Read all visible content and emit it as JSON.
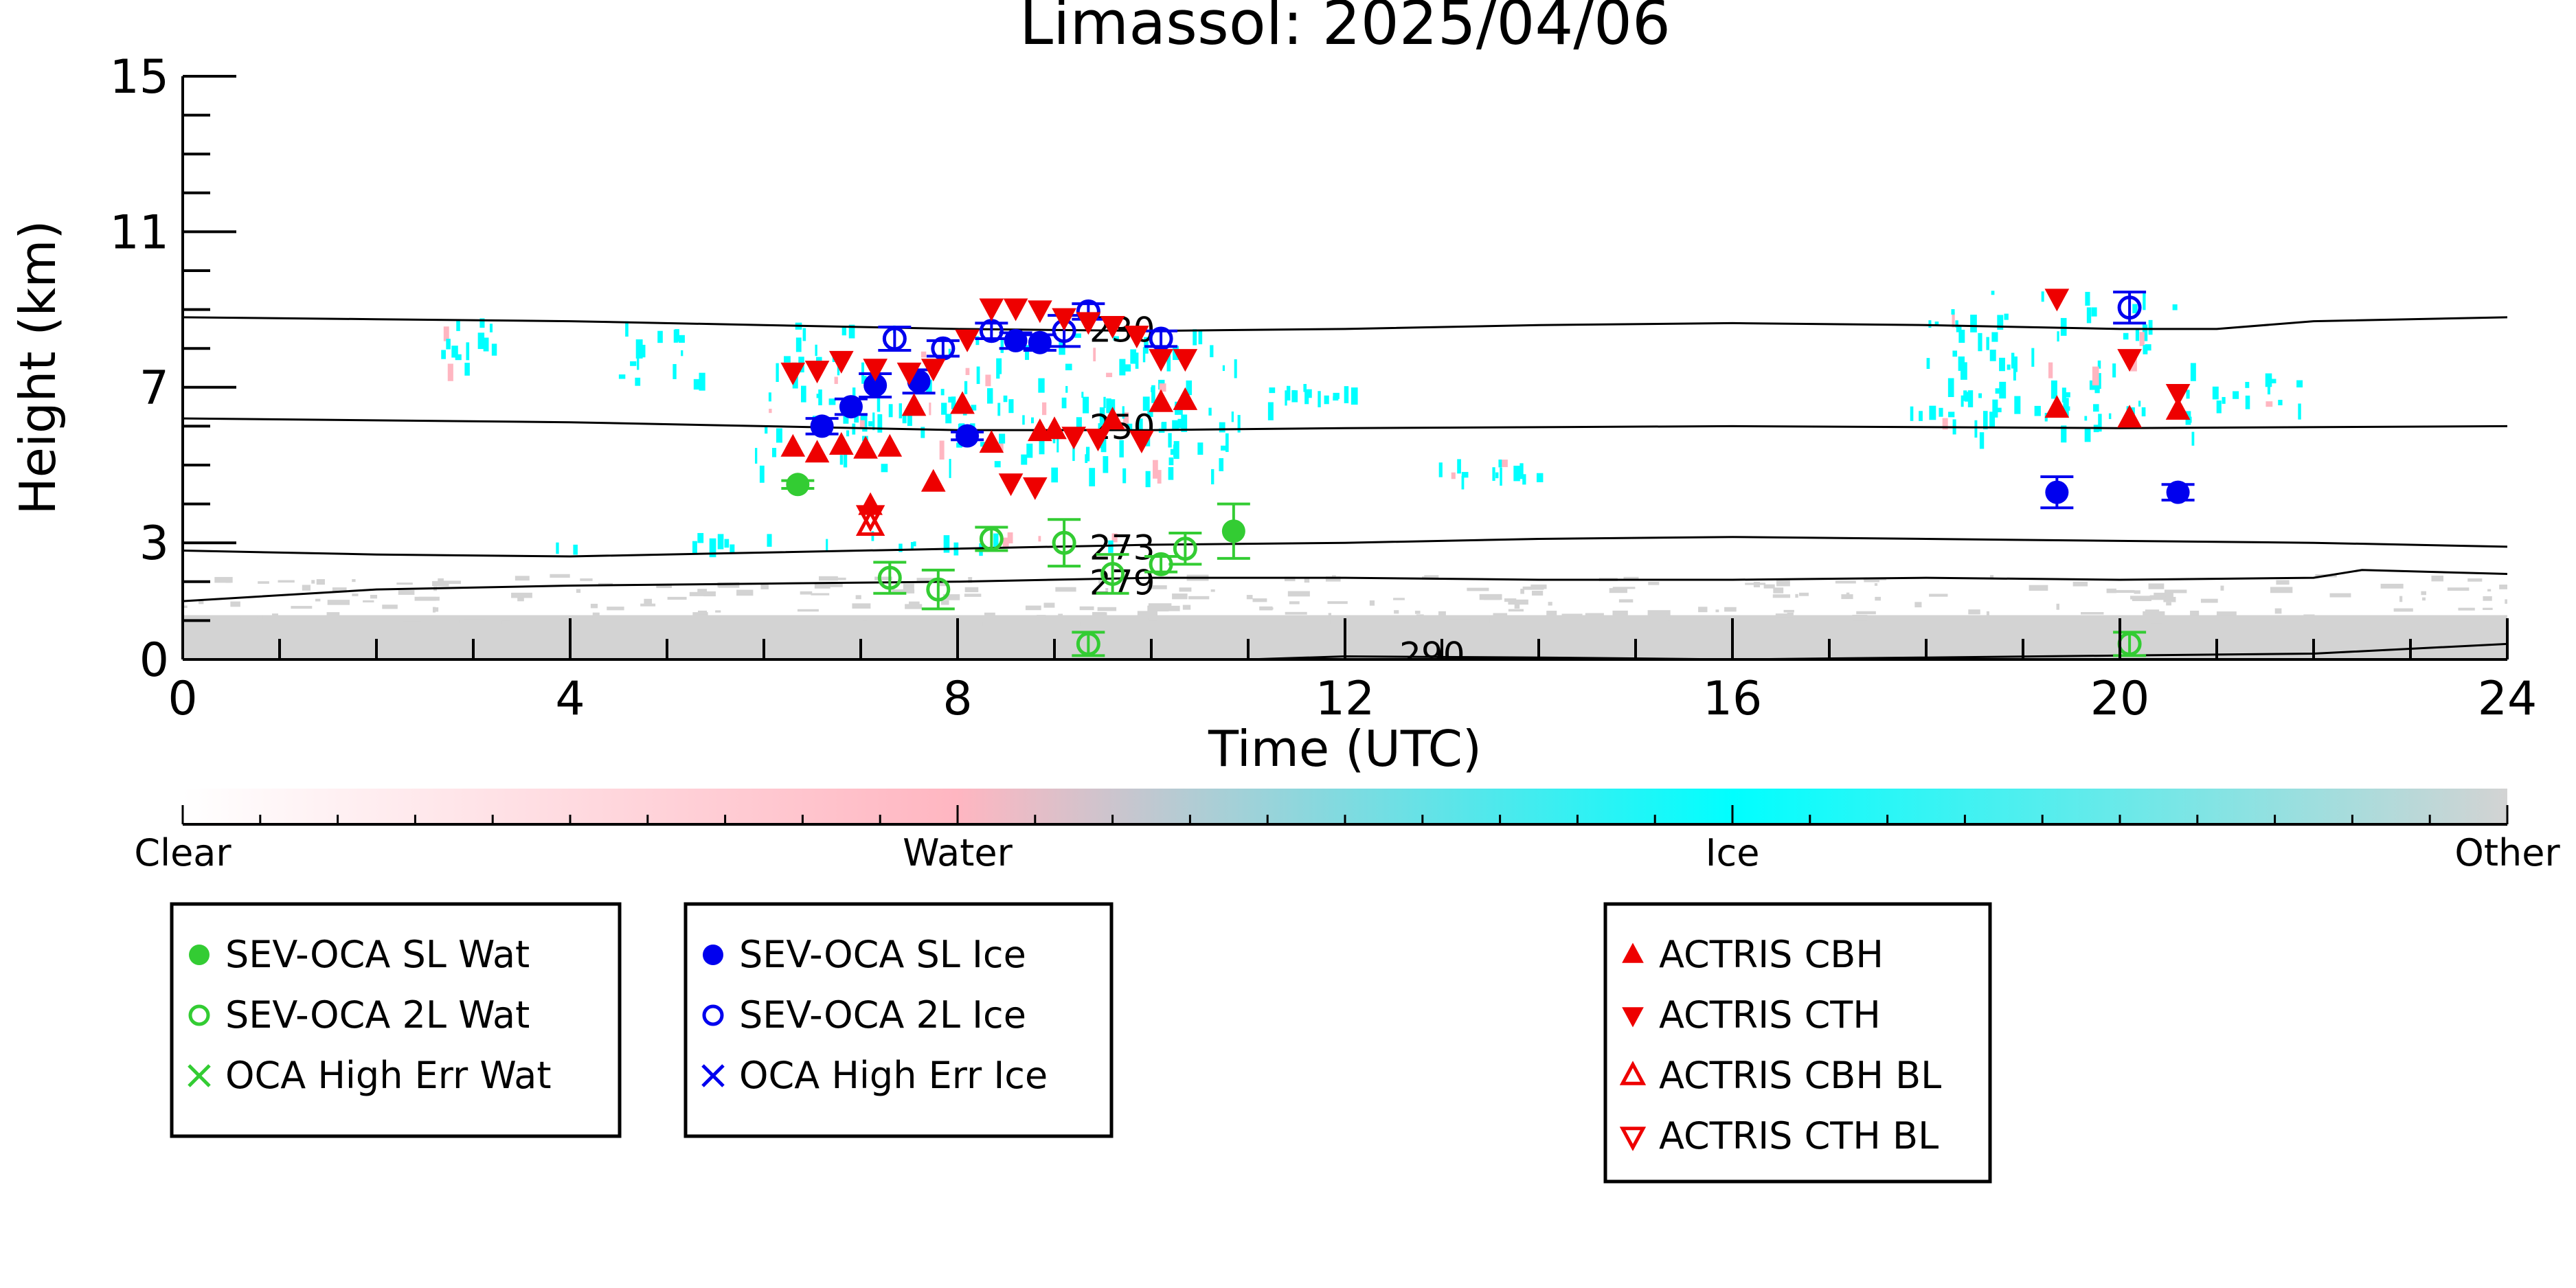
{
  "chart_data": {
    "type": "scatter",
    "title": "Limassol: 2025/04/06",
    "xlabel": "Time (UTC)",
    "ylabel": "Height (km)",
    "xlim": [
      0,
      24
    ],
    "ylim": [
      0,
      15
    ],
    "x_ticks": [
      0,
      4,
      8,
      12,
      16,
      20,
      24
    ],
    "y_ticks": [
      0,
      3,
      7,
      11,
      15
    ],
    "grid": false,
    "colorbar": {
      "labels": [
        "Clear",
        "Water",
        "Ice",
        "Other"
      ],
      "colors": [
        "#ffffff",
        "#ffb6c1",
        "#00ffff",
        "#d3d3d3"
      ]
    },
    "contours": [
      {
        "label": "230",
        "label_x": 9.7,
        "label_y": 8.45,
        "points": [
          [
            0,
            8.8
          ],
          [
            2,
            8.75
          ],
          [
            4,
            8.7
          ],
          [
            6,
            8.6
          ],
          [
            8,
            8.5
          ],
          [
            10,
            8.45
          ],
          [
            12,
            8.5
          ],
          [
            14,
            8.6
          ],
          [
            16,
            8.65
          ],
          [
            18,
            8.6
          ],
          [
            20,
            8.5
          ],
          [
            21,
            8.5
          ],
          [
            22,
            8.7
          ],
          [
            24,
            8.8
          ]
        ]
      },
      {
        "label": "250",
        "label_x": 9.7,
        "label_y": 5.95,
        "points": [
          [
            0,
            6.2
          ],
          [
            4,
            6.1
          ],
          [
            6,
            6.0
          ],
          [
            8,
            5.9
          ],
          [
            10,
            5.9
          ],
          [
            12,
            5.95
          ],
          [
            16,
            6.0
          ],
          [
            20,
            5.95
          ],
          [
            24,
            6.0
          ]
        ]
      },
      {
        "label": "273",
        "label_x": 9.7,
        "label_y": 2.85,
        "points": [
          [
            0,
            2.8
          ],
          [
            2,
            2.7
          ],
          [
            4,
            2.65
          ],
          [
            6,
            2.75
          ],
          [
            8,
            2.85
          ],
          [
            10,
            2.95
          ],
          [
            12,
            3.0
          ],
          [
            14,
            3.1
          ],
          [
            16,
            3.15
          ],
          [
            18,
            3.1
          ],
          [
            20,
            3.05
          ],
          [
            22,
            3.0
          ],
          [
            24,
            2.9
          ]
        ]
      },
      {
        "label": "279",
        "label_x": 9.7,
        "label_y": 1.95,
        "points": [
          [
            0,
            1.5
          ],
          [
            2,
            1.8
          ],
          [
            4,
            1.9
          ],
          [
            6,
            1.95
          ],
          [
            8,
            2.0
          ],
          [
            10,
            2.1
          ],
          [
            12,
            2.1
          ],
          [
            14,
            2.05
          ],
          [
            16,
            2.05
          ],
          [
            18,
            2.1
          ],
          [
            20,
            2.05
          ],
          [
            22,
            2.1
          ],
          [
            22.5,
            2.3
          ],
          [
            24,
            2.2
          ]
        ]
      },
      {
        "label": "290",
        "label_x": 12.9,
        "label_y": 0.1,
        "points": [
          [
            11,
            0
          ],
          [
            12,
            0.08
          ],
          [
            14,
            0.05
          ],
          [
            16,
            0.0
          ],
          [
            18,
            0.05
          ],
          [
            20,
            0.1
          ],
          [
            22,
            0.15
          ],
          [
            24,
            0.4
          ]
        ]
      }
    ],
    "series": [
      {
        "name": "SEV-OCA SL Wat",
        "color": "#33cc33",
        "marker": "filled-circle",
        "points": [
          [
            6.35,
            4.5,
            0.1
          ],
          [
            10.85,
            3.3,
            0.7
          ]
        ]
      },
      {
        "name": "SEV-OCA 2L Wat",
        "color": "#33cc33",
        "marker": "open-circle",
        "points": [
          [
            7.3,
            2.1,
            0.4
          ],
          [
            7.8,
            1.8,
            0.5
          ],
          [
            8.35,
            3.1,
            0.3
          ],
          [
            9.1,
            3.0,
            0.6
          ],
          [
            9.35,
            0.4,
            0.3
          ],
          [
            9.6,
            2.2,
            0.5
          ],
          [
            10.1,
            2.45,
            0.2
          ],
          [
            10.35,
            2.85,
            0.4
          ],
          [
            20.1,
            0.4,
            0.3
          ]
        ]
      },
      {
        "name": "OCA High Err Wat",
        "color": "#33cc33",
        "marker": "x",
        "points": []
      },
      {
        "name": "SEV-OCA SL Ice",
        "color": "#0000ee",
        "marker": "filled-circle",
        "points": [
          [
            6.6,
            6.0,
            0.2
          ],
          [
            6.9,
            6.5,
            0.2
          ],
          [
            7.15,
            7.05,
            0.3
          ],
          [
            7.6,
            7.15,
            0.3
          ],
          [
            8.1,
            5.75,
            0.1
          ],
          [
            8.6,
            8.2,
            0.2
          ],
          [
            8.85,
            8.15,
            0.2
          ],
          [
            19.35,
            4.3,
            0.4
          ],
          [
            20.6,
            4.3,
            0.2
          ]
        ]
      },
      {
        "name": "SEV-OCA 2L Ice",
        "color": "#0000ee",
        "marker": "open-circle",
        "points": [
          [
            7.35,
            8.25,
            0.3
          ],
          [
            7.85,
            8.0,
            0.2
          ],
          [
            8.35,
            8.45,
            0.2
          ],
          [
            9.1,
            8.45,
            0.4
          ],
          [
            9.35,
            8.95,
            0.2
          ],
          [
            10.1,
            8.25,
            0.2
          ],
          [
            20.1,
            9.05,
            0.4
          ]
        ]
      },
      {
        "name": "OCA High Err Ice",
        "color": "#0000ee",
        "marker": "x",
        "points": []
      },
      {
        "name": "ACTRIS CBH",
        "color": "#ee0000",
        "marker": "triangle-up",
        "points": [
          [
            6.3,
            5.45
          ],
          [
            6.55,
            5.3
          ],
          [
            6.8,
            5.5
          ],
          [
            7.05,
            5.4
          ],
          [
            7.3,
            5.45
          ],
          [
            7.75,
            4.55
          ],
          [
            7.55,
            6.5
          ],
          [
            8.05,
            6.55
          ],
          [
            8.35,
            5.55
          ],
          [
            8.85,
            5.85
          ],
          [
            9.0,
            5.9
          ],
          [
            9.6,
            6.15
          ],
          [
            10.1,
            6.6
          ],
          [
            10.35,
            6.65
          ],
          [
            19.35,
            6.45
          ],
          [
            20.1,
            6.2
          ],
          [
            20.6,
            6.4
          ],
          [
            7.1,
            3.95
          ]
        ]
      },
      {
        "name": "ACTRIS CTH",
        "color": "#ee0000",
        "marker": "triangle-down",
        "points": [
          [
            6.3,
            7.4
          ],
          [
            6.55,
            7.45
          ],
          [
            6.8,
            7.7
          ],
          [
            7.15,
            7.5
          ],
          [
            7.5,
            7.4
          ],
          [
            7.75,
            7.5
          ],
          [
            8.1,
            8.25
          ],
          [
            8.35,
            9.05
          ],
          [
            8.6,
            9.05
          ],
          [
            8.85,
            9.0
          ],
          [
            9.1,
            8.8
          ],
          [
            9.35,
            8.7
          ],
          [
            9.6,
            8.6
          ],
          [
            9.85,
            8.35
          ],
          [
            10.1,
            7.75
          ],
          [
            10.35,
            7.75
          ],
          [
            8.55,
            4.55
          ],
          [
            8.8,
            4.45
          ],
          [
            19.35,
            9.3
          ],
          [
            20.1,
            7.75
          ],
          [
            20.6,
            6.85
          ],
          [
            9.9,
            5.65
          ],
          [
            9.45,
            5.7
          ],
          [
            9.2,
            5.75
          ]
        ]
      },
      {
        "name": "ACTRIS CBH BL",
        "color": "#ee0000",
        "marker": "open-triangle-up",
        "points": [
          [
            7.1,
            3.45
          ]
        ]
      },
      {
        "name": "ACTRIS CTH BL",
        "color": "#ee0000",
        "marker": "open-triangle-down",
        "points": [
          [
            7.1,
            3.7
          ]
        ]
      }
    ],
    "cloud_regions": [
      {
        "type": "ice",
        "x": [
          2.5,
          3.3
        ],
        "y": [
          7.5,
          9.2
        ]
      },
      {
        "type": "ice",
        "x": [
          4.5,
          5.4
        ],
        "y": [
          7.2,
          8.7
        ]
      },
      {
        "type": "ice",
        "x": [
          5.9,
          10.9
        ],
        "y": [
          4.8,
          8.7
        ]
      },
      {
        "type": "ice",
        "x": [
          11.2,
          12.1
        ],
        "y": [
          6.6,
          7.1
        ]
      },
      {
        "type": "ice",
        "x": [
          12.9,
          14.0
        ],
        "y": [
          4.7,
          5.3
        ]
      },
      {
        "type": "ice",
        "x": [
          17.8,
          20.8
        ],
        "y": [
          5.8,
          9.5
        ]
      },
      {
        "type": "ice",
        "x": [
          20.8,
          22.0
        ],
        "y": [
          6.5,
          7.4
        ]
      },
      {
        "type": "ice",
        "x": [
          3.7,
          10.5
        ],
        "y": [
          2.9,
          3.3
        ]
      },
      {
        "type": "other",
        "x": [
          0,
          24
        ],
        "y": [
          0,
          2.2
        ]
      }
    ]
  },
  "legend_boxes": [
    {
      "items": [
        {
          "label": "SEV-OCA SL Wat",
          "color": "#33cc33",
          "marker": "filled-circle"
        },
        {
          "label": "SEV-OCA 2L Wat",
          "color": "#33cc33",
          "marker": "open-circle"
        },
        {
          "label": "OCA High Err Wat",
          "color": "#33cc33",
          "marker": "x"
        }
      ]
    },
    {
      "items": [
        {
          "label": "SEV-OCA SL Ice",
          "color": "#0000ee",
          "marker": "filled-circle"
        },
        {
          "label": "SEV-OCA 2L Ice",
          "color": "#0000ee",
          "marker": "open-circle"
        },
        {
          "label": "OCA High Err Ice",
          "color": "#0000ee",
          "marker": "x"
        }
      ]
    },
    {
      "items": [
        {
          "label": "ACTRIS CBH",
          "color": "#ee0000",
          "marker": "triangle-up"
        },
        {
          "label": "ACTRIS CTH",
          "color": "#ee0000",
          "marker": "triangle-down"
        },
        {
          "label": "ACTRIS CBH BL",
          "color": "#ee0000",
          "marker": "open-triangle-up"
        },
        {
          "label": "ACTRIS CTH BL",
          "color": "#ee0000",
          "marker": "open-triangle-down"
        }
      ]
    }
  ]
}
